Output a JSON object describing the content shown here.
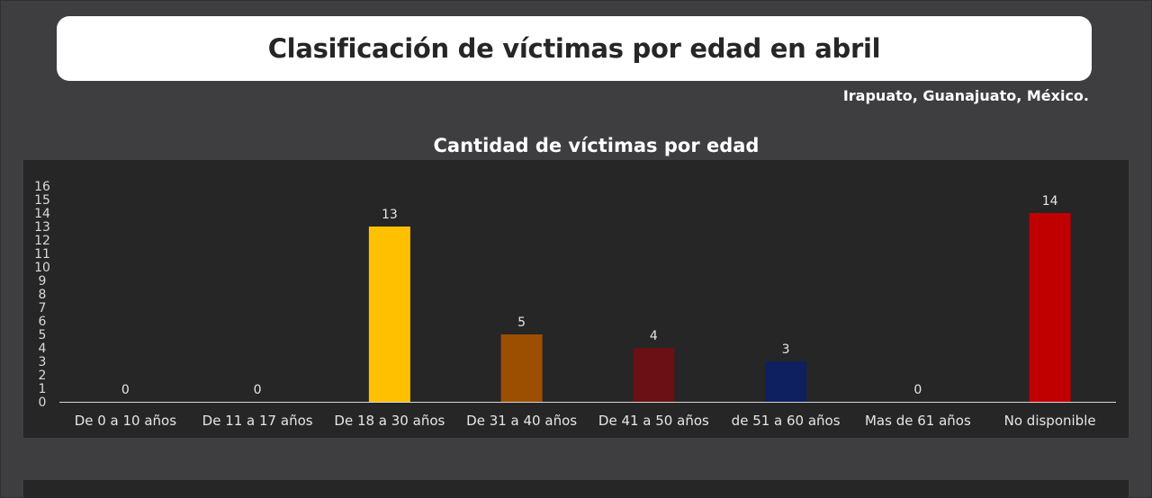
{
  "header": {
    "title": "Clasificación de víctimas por edad en abril",
    "location": "Irapuato, Guanajuato, México."
  },
  "chart_data": {
    "type": "bar",
    "title": "Cantidad de víctimas por edad",
    "xlabel": "",
    "ylabel": "",
    "categories": [
      "De 0 a 10 años",
      "De 11 a 17 años",
      "De 18 a 30 años",
      "De 31 a 40 años",
      "De 41 a 50 años",
      "de 51 a 60 años",
      "Mas de 61 años",
      "No disponible"
    ],
    "values": [
      0,
      0,
      13,
      5,
      4,
      3,
      0,
      14
    ],
    "colors": [
      "#ffc000",
      "#ffc000",
      "#ffc000",
      "#9c4f00",
      "#6b1014",
      "#0e2060",
      "#c00000",
      "#c00000"
    ],
    "ylim": [
      0,
      16
    ],
    "yticks": [
      0,
      1,
      2,
      3,
      4,
      5,
      6,
      7,
      8,
      9,
      10,
      11,
      12,
      13,
      14,
      15,
      16
    ],
    "grid": false,
    "legend": "none",
    "data_labels": true
  }
}
